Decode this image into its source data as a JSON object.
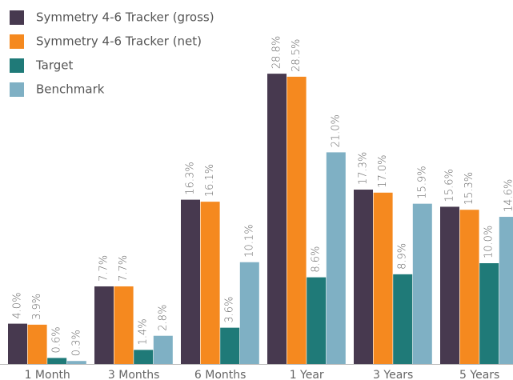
{
  "chart_data": {
    "type": "bar",
    "categories": [
      "1 Month",
      "3 Months",
      "6 Months",
      "1 Year",
      "3 Years",
      "5 Years"
    ],
    "series": [
      {
        "name": "Symmetry 4-6 Tracker (gross)",
        "color": "#47394f",
        "values": [
          4.0,
          7.7,
          16.3,
          28.8,
          17.3,
          15.6
        ],
        "value_labels": [
          "4.0%",
          "7.7%",
          "16.3%",
          "28.8%",
          "17.3%",
          "15.6%"
        ]
      },
      {
        "name": "Symmetry 4-6 Tracker (net)",
        "color": "#f5891f",
        "values": [
          3.9,
          7.7,
          16.1,
          28.5,
          17.0,
          15.3
        ],
        "value_labels": [
          "3.9%",
          "7.7%",
          "16.1%",
          "28.5%",
          "17.0%",
          "15.3%"
        ]
      },
      {
        "name": "Target",
        "color": "#1f7a78",
        "values": [
          0.6,
          1.4,
          3.6,
          8.6,
          8.9,
          10.0
        ],
        "value_labels": [
          "0.6%",
          "1.4%",
          "3.6%",
          "8.6%",
          "8.9%",
          "10.0%"
        ]
      },
      {
        "name": "Benchmark",
        "color": "#7fb0c4",
        "values": [
          0.3,
          2.8,
          10.1,
          21.0,
          15.9,
          14.6
        ],
        "value_labels": [
          "0.3%",
          "2.8%",
          "10.1%",
          "21.0%",
          "15.9%",
          "14.6%"
        ]
      }
    ],
    "legend": "top-left"
  }
}
